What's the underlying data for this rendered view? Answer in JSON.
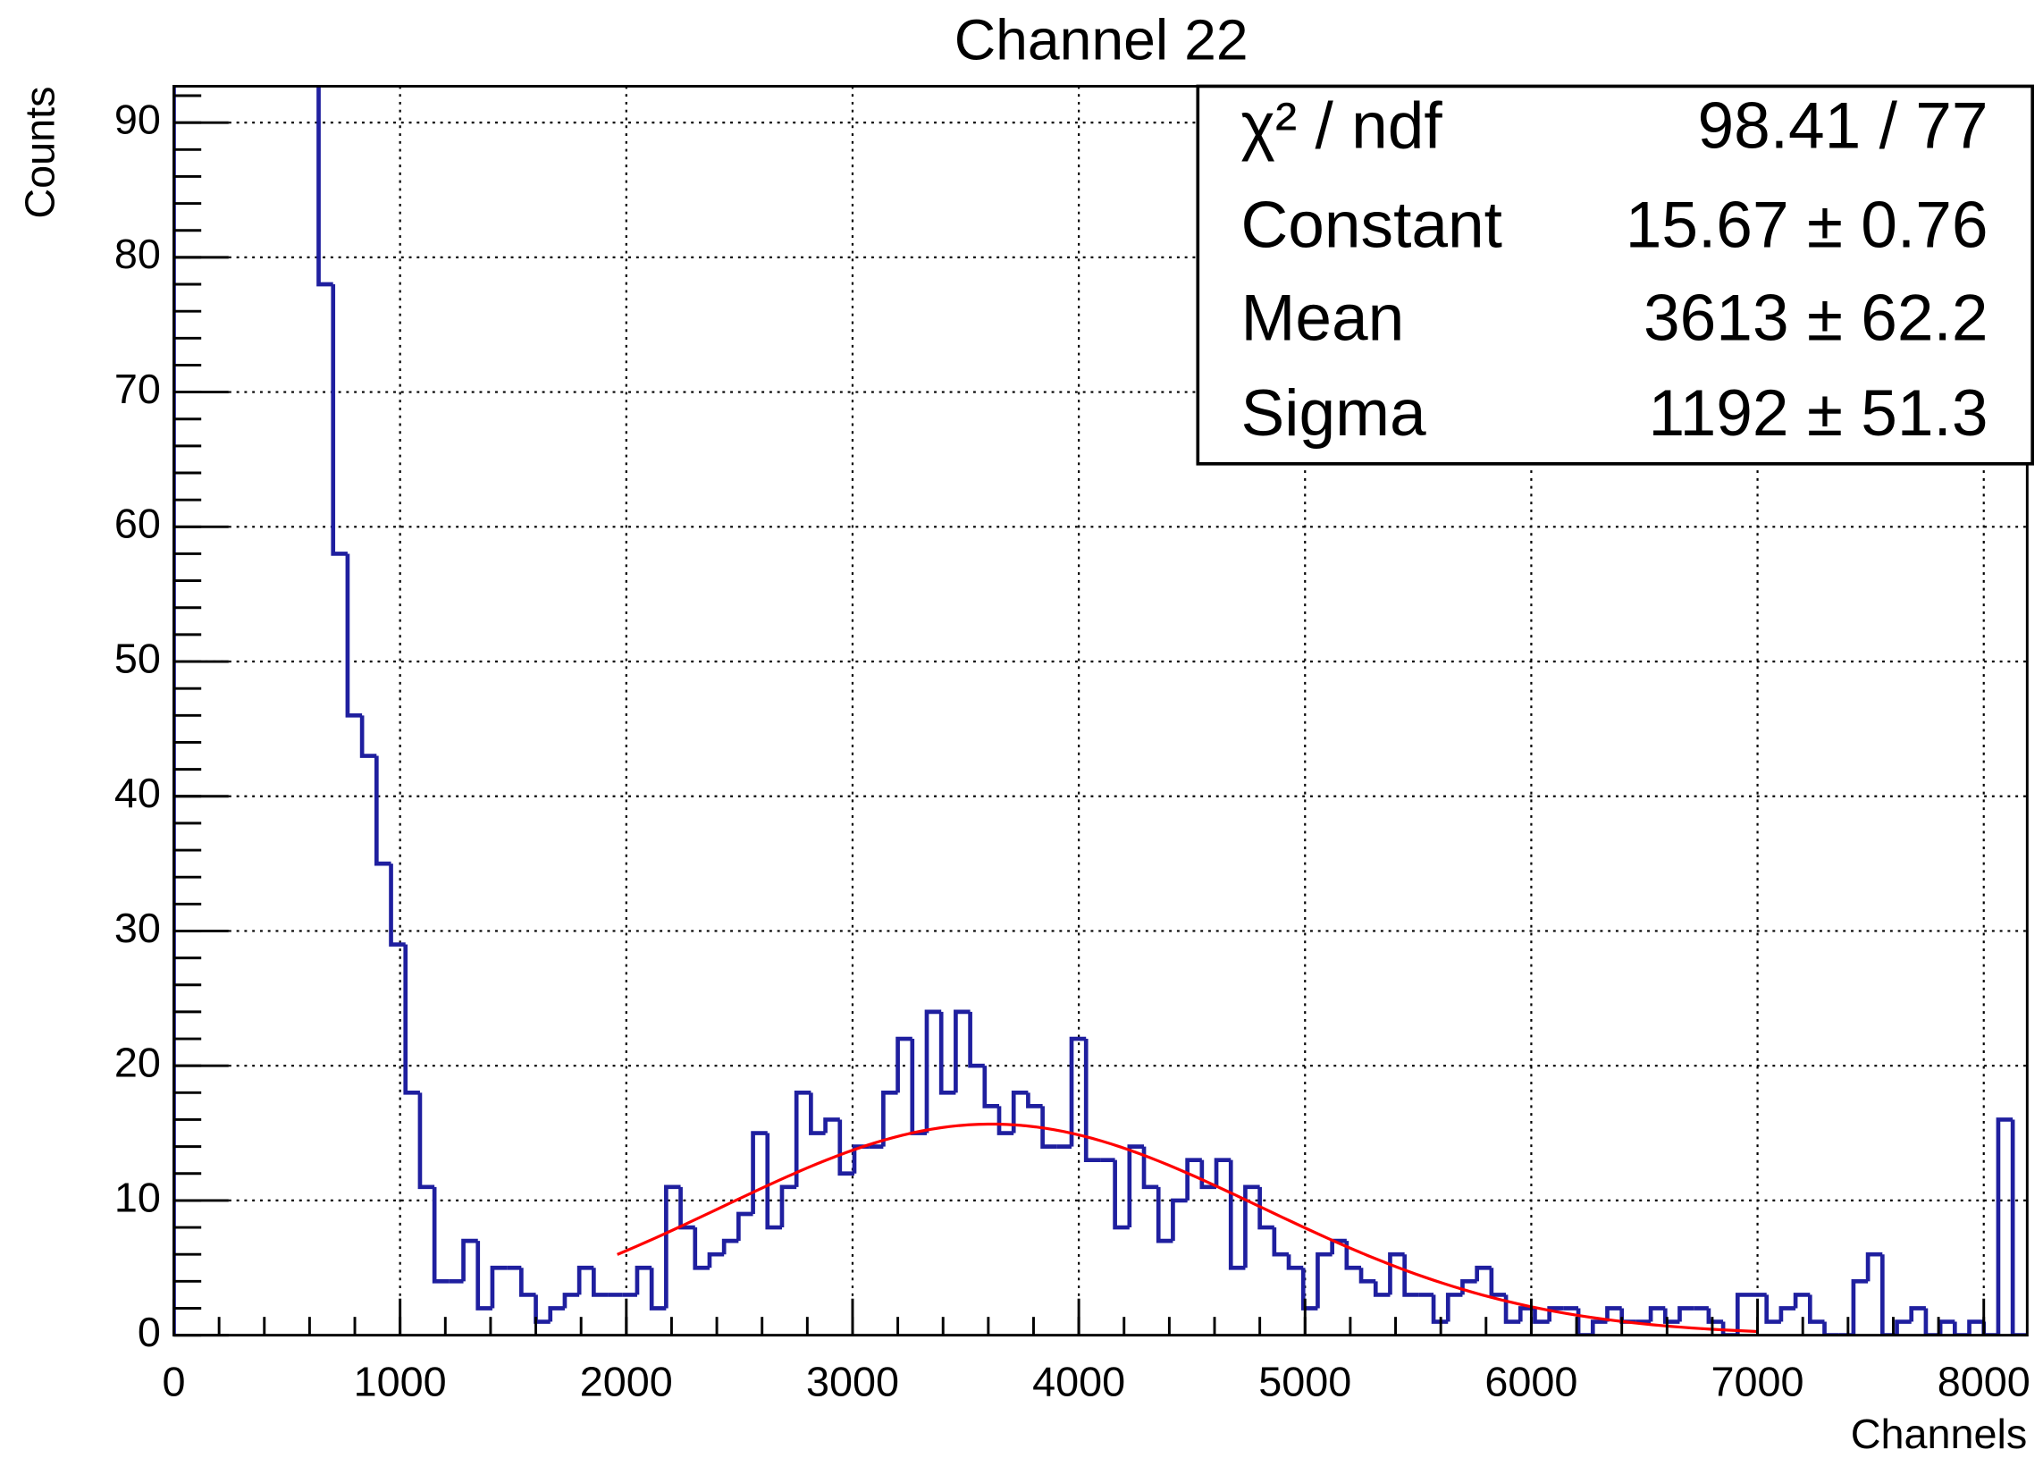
{
  "chart_data": {
    "type": "histogram",
    "title": "Channel 22",
    "x_label": "Channels",
    "y_label": "Counts",
    "bins": [
      0,
      64,
      128,
      192,
      256,
      320,
      384,
      448,
      512,
      576,
      640,
      704,
      768,
      832,
      896,
      960,
      1024,
      1088,
      1152,
      1216,
      1280,
      1344,
      1408,
      1472,
      1536,
      1600,
      1664,
      1728,
      1792,
      1856,
      1920,
      1984,
      2048,
      2112,
      2176,
      2240,
      2304,
      2368,
      2432,
      2496,
      2560,
      2624,
      2688,
      2752,
      2816,
      2880,
      2944,
      3008,
      3072,
      3136,
      3200,
      3264,
      3328,
      3392,
      3456,
      3520,
      3584,
      3648,
      3712,
      3776,
      3840,
      3904,
      3968,
      4032,
      4096,
      4160,
      4224,
      4288,
      4352,
      4416,
      4480,
      4544,
      4608,
      4672,
      4736,
      4800,
      4864,
      4928,
      4992,
      5056,
      5120,
      5184,
      5248,
      5312,
      5376,
      5440,
      5504,
      5568,
      5632,
      5696,
      5760,
      5824,
      5888,
      5952,
      6016,
      6080,
      6144,
      6208,
      6272,
      6336,
      6400,
      6464,
      6528,
      6592,
      6656,
      6720,
      6784,
      6848,
      6912,
      6976,
      7040,
      7104,
      7168,
      7232,
      7296,
      7360,
      7424,
      7488,
      7552,
      7616,
      7680,
      7744,
      7808,
      7872,
      7936,
      8000,
      8064,
      8128,
      8192
    ],
    "values": [
      93,
      93,
      93,
      93,
      93,
      93,
      93,
      93,
      93,
      93,
      78,
      58,
      46,
      43,
      35,
      29,
      18,
      11,
      4,
      4,
      7,
      2,
      5,
      5,
      3,
      1,
      2,
      3,
      5,
      3,
      3,
      3,
      5,
      2,
      11,
      8,
      5,
      6,
      7,
      9,
      15,
      8,
      11,
      18,
      15,
      16,
      12,
      14,
      14,
      18,
      22,
      15,
      24,
      18,
      24,
      20,
      17,
      15,
      18,
      17,
      14,
      14,
      22,
      13,
      13,
      8,
      14,
      11,
      7,
      10,
      13,
      11,
      13,
      5,
      11,
      8,
      6,
      5,
      2,
      6,
      7,
      5,
      4,
      3,
      6,
      3,
      3,
      1,
      3,
      4,
      5,
      3,
      1,
      2,
      1,
      2,
      2,
      0,
      1,
      2,
      1,
      1,
      2,
      1,
      2,
      2,
      1,
      0,
      3,
      3,
      1,
      2,
      3,
      1,
      0,
      0,
      4,
      6,
      0,
      1,
      2,
      0,
      1,
      0,
      1,
      0,
      16,
      0
    ],
    "color": "#1f1f9f",
    "xlim": [
      0,
      8192
    ],
    "ylim": [
      0,
      92.7
    ],
    "xticks": [
      0,
      1000,
      2000,
      3000,
      4000,
      5000,
      6000,
      7000,
      8000
    ],
    "yticks": [
      0,
      10,
      20,
      30,
      40,
      50,
      60,
      70,
      80,
      90
    ],
    "grid": true,
    "fit": {
      "color": "#ff0000",
      "range": [
        1960,
        7000
      ]
    },
    "stats": [
      {
        "label": "χ² / ndf",
        "value_label": "98.41 / 77"
      },
      {
        "label": "Constant",
        "value": 15.67,
        "value_label": "15.67 ± 0.76"
      },
      {
        "label": "Mean",
        "value": 3613,
        "value_label": "3613 ± 62.2"
      },
      {
        "label": "Sigma",
        "value": 1192,
        "value_label": "1192 ± 51.3"
      }
    ]
  }
}
